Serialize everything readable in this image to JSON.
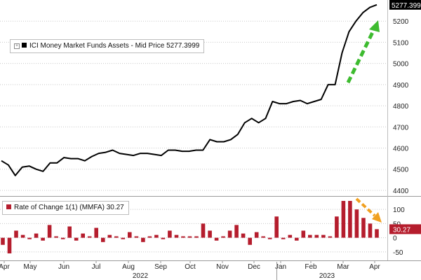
{
  "chart_data": [
    {
      "type": "line",
      "series": [
        {
          "name": "ICI Money Market Funds Assets - Mid Price",
          "last_value_label": "5277.3999",
          "color": "#000000",
          "values": [
            4540,
            4520,
            4470,
            4510,
            4515,
            4500,
            4490,
            4530,
            4530,
            4555,
            4550,
            4550,
            4540,
            4560,
            4575,
            4580,
            4590,
            4575,
            4570,
            4565,
            4575,
            4575,
            4570,
            4565,
            4590,
            4590,
            4585,
            4585,
            4590,
            4590,
            4640,
            4630,
            4630,
            4640,
            4665,
            4720,
            4740,
            4720,
            4740,
            4820,
            4810,
            4810,
            4820,
            4825,
            4810,
            4820,
            4830,
            4900,
            4900,
            5050,
            5150,
            5200,
            5240,
            5265,
            5277.3999
          ]
        }
      ],
      "legend": "ICI Money Market Funds Assets - Mid Price 5277.3999",
      "yticks": [
        4400,
        4500,
        4600,
        4700,
        4800,
        4900,
        5000,
        5100,
        5200
      ],
      "ylim": [
        4380,
        5300
      ],
      "grid": true,
      "annotation": "green dashed arrow pointing up at the end of the series"
    },
    {
      "type": "bar",
      "series": [
        {
          "name": "Rate of Change 1(1) (MMFA)",
          "last_value_label": "30.27",
          "color": "#b51d2d",
          "values": [
            -25,
            -55,
            25,
            10,
            -5,
            15,
            -10,
            45,
            5,
            -5,
            40,
            -10,
            15,
            5,
            35,
            -15,
            10,
            5,
            -5,
            20,
            5,
            -15,
            5,
            10,
            -5,
            25,
            10,
            5,
            5,
            5,
            50,
            25,
            -10,
            5,
            25,
            45,
            15,
            -25,
            20,
            5,
            -5,
            75,
            -5,
            10,
            -10,
            25,
            10,
            10,
            10,
            5,
            75,
            130,
            130,
            100,
            70,
            50,
            30.27
          ]
        }
      ],
      "legend": "Rate of Change 1(1) (MMFA) 30.27",
      "yticks": [
        -50,
        0,
        50,
        100
      ],
      "ylim": [
        -75,
        140
      ],
      "grid": true,
      "annotation": "orange dashed arrow pointing down over the final bars"
    }
  ],
  "legend_main": {
    "series_name": "ICI Money Market Funds Assets - Mid Price",
    "value": "5277.3999"
  },
  "legend_roc": {
    "series_name": "Rate of Change 1(1) (MMFA)",
    "value": "30.27"
  },
  "x_axis": {
    "months": [
      "Apr",
      "May",
      "Jun",
      "Jul",
      "Aug",
      "Sep",
      "Oct",
      "Nov",
      "Dec",
      "Jan",
      "Feb",
      "Mar",
      "Apr"
    ],
    "years": [
      "2022",
      "2023"
    ]
  },
  "colors": {
    "price_line": "#000000",
    "roc_bars": "#b51d2d",
    "up_arrow": "#3dbb2f",
    "down_arrow": "#f0a020",
    "grid": "#c8c8c8"
  }
}
